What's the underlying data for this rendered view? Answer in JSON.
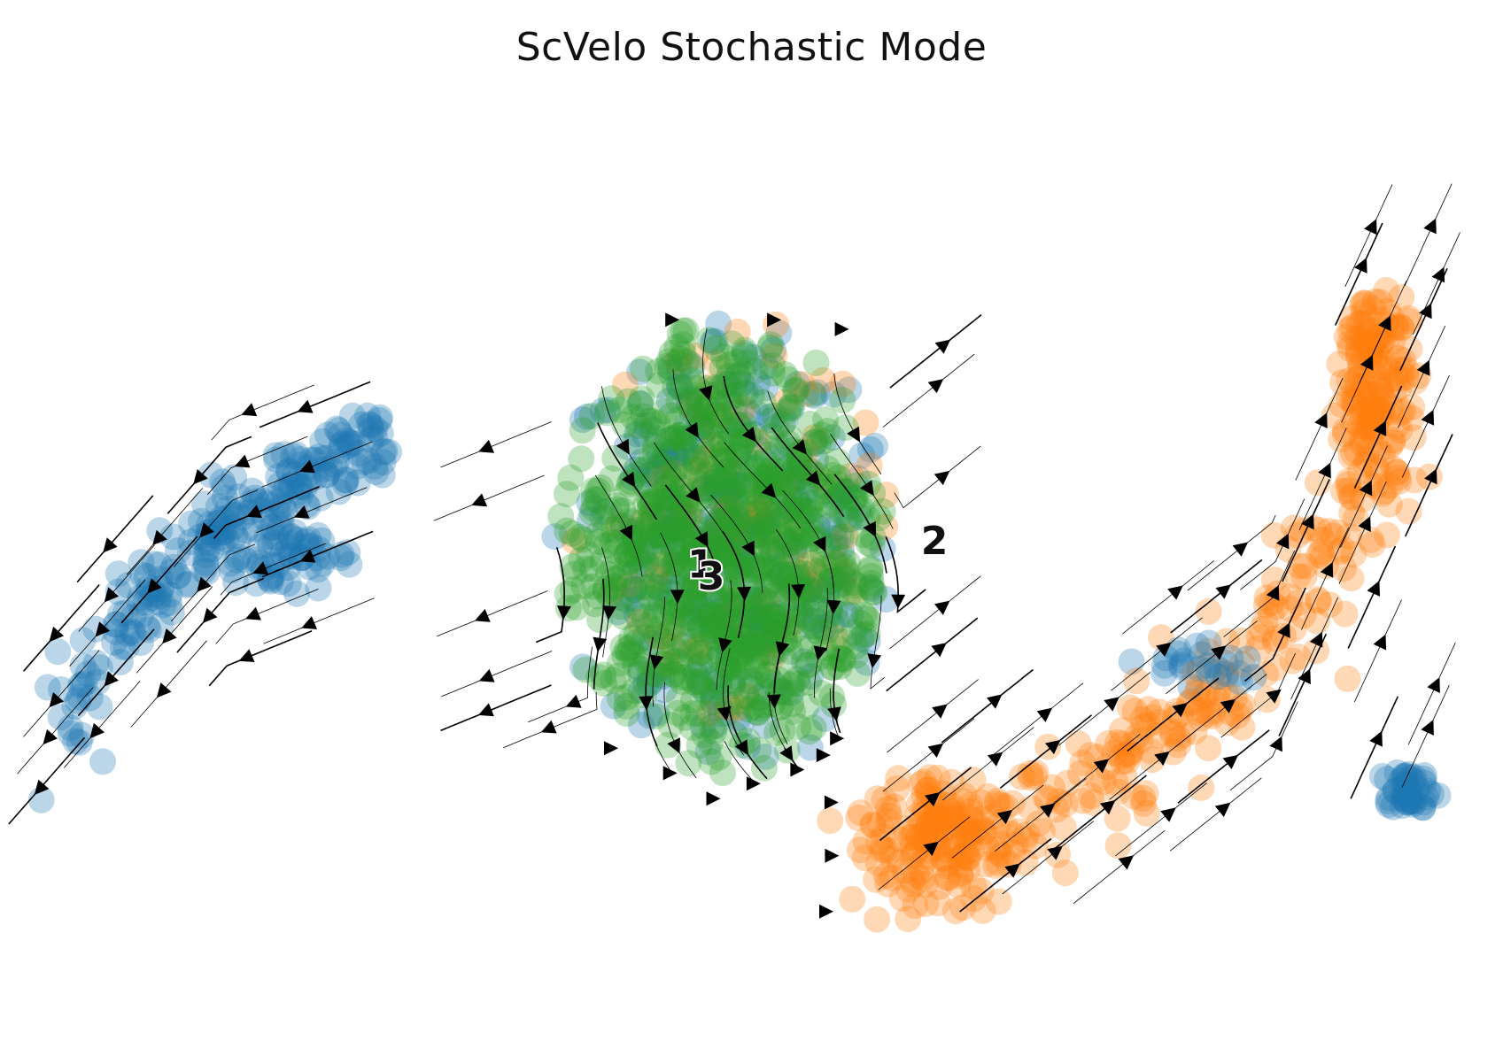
{
  "chart_data": {
    "type": "scatter",
    "subtype": "velocity-stream-embedding",
    "title": "ScVelo Stochastic Mode",
    "axes_visible": false,
    "grid": false,
    "legend": "on-data",
    "point_alpha": 0.3,
    "x_range": [
      -14,
      14
    ],
    "y_range": [
      -10,
      10
    ],
    "series": [
      {
        "name": "1",
        "color": "#1f77b4",
        "groups": [
          {
            "cx": -10.8,
            "cy": 1.0,
            "sx": 0.9,
            "sy": 0.7,
            "n": 220,
            "curve": "arm-left"
          },
          {
            "cx": -9.0,
            "cy": 0.0,
            "sx": 1.2,
            "sy": 0.8,
            "n": 60
          },
          {
            "cx": -0.5,
            "cy": 0.2,
            "sx": 3.2,
            "sy": 4.6,
            "n": 300
          },
          {
            "cx": 12.6,
            "cy": -4.9,
            "sx": 0.6,
            "sy": 0.5,
            "n": 45
          },
          {
            "cx": 8.5,
            "cy": -2.3,
            "sx": 1.2,
            "sy": 0.6,
            "n": 25
          }
        ],
        "label": {
          "text": "1",
          "x": -1.0,
          "y": -0.2
        }
      },
      {
        "name": "2",
        "color": "#ff7f0e",
        "groups": [
          {
            "cx": 7.8,
            "cy": -3.5,
            "sx": 3.0,
            "sy": 1.2,
            "n": 280,
            "curve": "arm-right"
          },
          {
            "cx": 12.0,
            "cy": 3.5,
            "sx": 0.8,
            "sy": 2.5,
            "n": 160
          },
          {
            "cx": 3.5,
            "cy": -5.5,
            "sx": 1.6,
            "sy": 1.0,
            "n": 90
          },
          {
            "cx": -0.5,
            "cy": 0.5,
            "sx": 3.0,
            "sy": 4.5,
            "n": 90
          }
        ],
        "label": {
          "text": "2",
          "x": 3.5,
          "y": 0.3
        }
      },
      {
        "name": "3",
        "color": "#2ca02c",
        "groups": [
          {
            "cx": -0.6,
            "cy": 0.2,
            "sx": 3.0,
            "sy": 4.6,
            "n": 900
          }
        ],
        "label": {
          "text": "3",
          "x": -0.8,
          "y": -0.45
        }
      }
    ]
  }
}
